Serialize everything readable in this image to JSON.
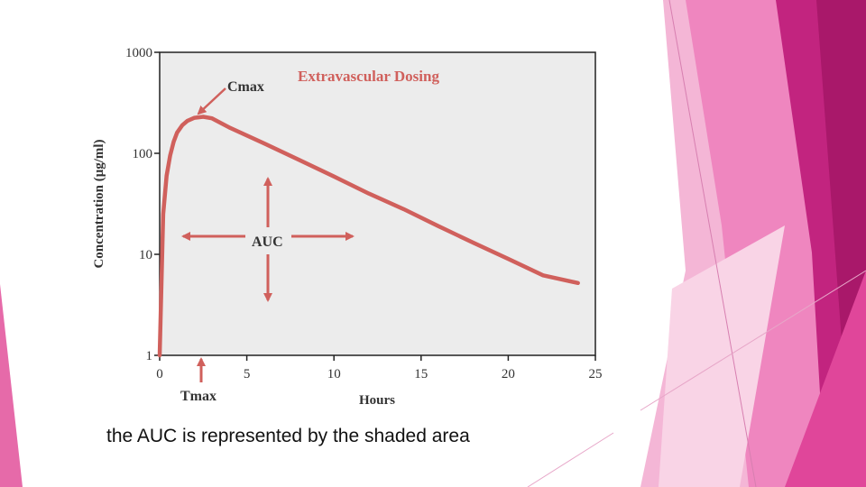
{
  "caption": "the AUC is represented by the shaded area",
  "colors": {
    "curve": "#d0605c",
    "plot_background": "#ececec",
    "accent_pink": "#e0469a",
    "accent_magenta": "#b81c78"
  },
  "chart_data": {
    "type": "line",
    "title": "Extravascular Dosing",
    "xlabel": "Hours",
    "ylabel": "Concentration (μg/ml)",
    "yscale": "log",
    "xlim": [
      0,
      25
    ],
    "ylim": [
      1,
      1000
    ],
    "xticks": [
      0,
      5,
      10,
      15,
      20,
      25
    ],
    "yticks": [
      1,
      10,
      100,
      1000
    ],
    "grid": false,
    "series": [
      {
        "x": [
          0,
          0.2,
          0.4,
          0.6,
          0.8,
          1.0,
          1.3,
          1.6,
          2.0,
          2.5,
          3.0,
          4,
          6,
          8,
          10,
          12,
          14,
          16,
          18,
          20,
          22,
          24
        ],
        "y": [
          1,
          25,
          60,
          95,
          130,
          160,
          190,
          210,
          225,
          230,
          222,
          180,
          125,
          86,
          59,
          40,
          28,
          19,
          13,
          9,
          6.2,
          5.2
        ]
      }
    ],
    "annotations": {
      "cmax": "Cmax",
      "tmax": "Tmax",
      "auc": "AUC"
    }
  }
}
